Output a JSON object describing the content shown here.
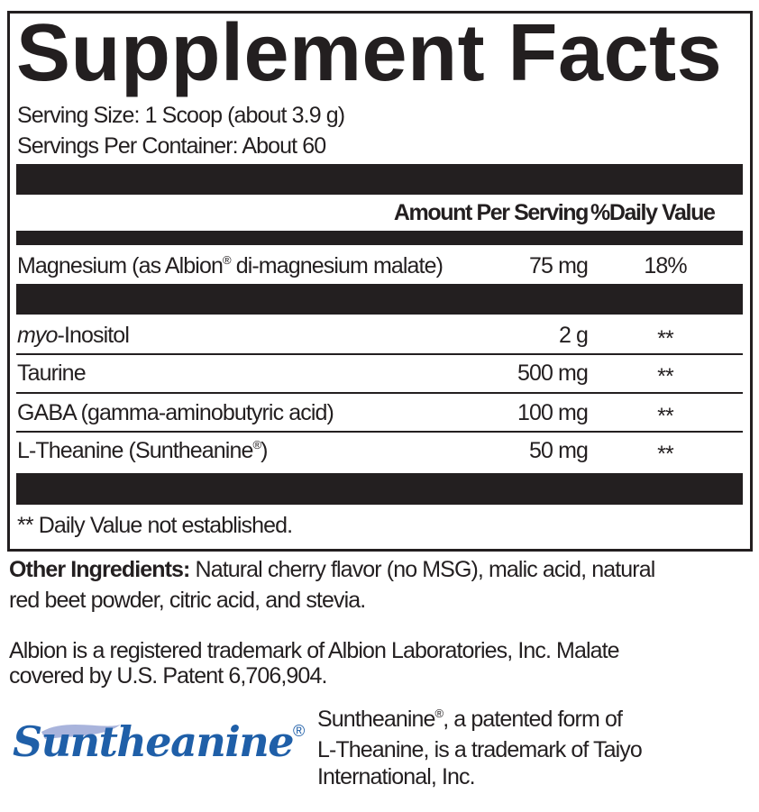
{
  "title": "Supplement Facts",
  "serving_size": "Serving Size: 1 Scoop (about 3.9 g)",
  "servings_per_container": "Servings Per Container: About 60",
  "header": {
    "amount": "Amount Per Serving",
    "dv": "%Daily Value"
  },
  "nutrients": [
    {
      "name": "Magnesium (as Albion",
      "reg": "®",
      "name_rest": " di-magnesium malate)",
      "amount": "75 mg",
      "dv": "18%"
    }
  ],
  "ingredients": [
    {
      "name_italic": "myo",
      "name": "-Inositol",
      "amount": "2 g",
      "dv": "**"
    },
    {
      "name": "Taurine",
      "amount": "500 mg",
      "dv": "**"
    },
    {
      "name": "GABA (gamma-aminobutyric acid)",
      "amount": "100 mg",
      "dv": "**"
    },
    {
      "name": "L-Theanine (Suntheanine",
      "reg": "®",
      "name_rest": ")",
      "amount": "50 mg",
      "dv": "**"
    }
  ],
  "footnote": "** Daily Value not established.",
  "other_ingredients": {
    "label": "Other Ingredients:",
    "line1": " Natural cherry flavor (no MSG), malic acid, natural",
    "line2": "red beet powder, citric acid, and stevia."
  },
  "albion_note": {
    "line1": "Albion is a registered trademark of Albion Laboratories, Inc. Malate",
    "line2": "covered by U.S. Patent 6,706,904."
  },
  "logo": {
    "text": "Suntheanine",
    "reg": "®",
    "color": "#1f5fa8",
    "wave_color": "#a9b4dc"
  },
  "suntheanine_note": {
    "line1a": "Suntheanine",
    "reg": "®",
    "line1b": ", a patented form of",
    "line2": "L-Theanine, is a trademark of Taiyo",
    "line3": "International, Inc."
  }
}
